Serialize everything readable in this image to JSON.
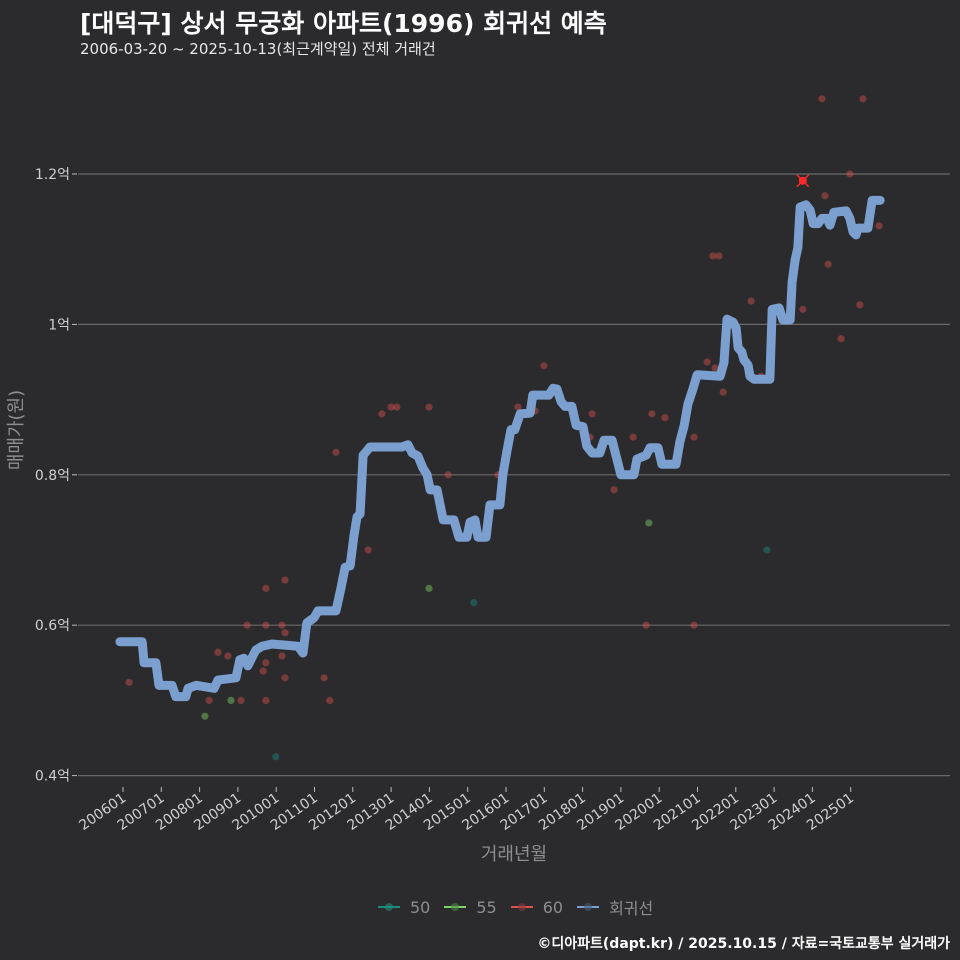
{
  "title": "[대덕구] 상서 무궁화 아파트(1996) 회귀선 예측",
  "subtitle": "2006-03-20 ~ 2025-10-13(최근계약일) 전체 거래건",
  "footer": "©디아파트(dapt.kr) / 2025.10.15 / 자료=국토교통부 실거래가",
  "colors": {
    "background": "#2b2a2c",
    "s50": "#1f8a80",
    "s55": "#7fd36a",
    "s60": "#d9534f",
    "regression": "#7b9fcf",
    "highlight": "#ff2a2a",
    "grid": "#6a6a6a"
  },
  "chart_data": {
    "type": "scatter",
    "title": "[대덕구] 상서 무궁화 아파트(1996) 회귀선 예측",
    "xlabel": "거래년월",
    "ylabel": "매매가(원)",
    "xlim": [
      2005.9,
      2025.9
    ],
    "ylim": [
      0.4,
      1.3
    ],
    "x_ticks": [
      2006,
      2007,
      2008,
      2009,
      2010,
      2011,
      2012,
      2013,
      2014,
      2015,
      2016,
      2017,
      2018,
      2019,
      2020,
      2021,
      2022,
      2023,
      2024,
      2025
    ],
    "x_tick_labels": [
      "200601",
      "200701",
      "200801",
      "200901",
      "201001",
      "201101",
      "201201",
      "201301",
      "201401",
      "201501",
      "201601",
      "201701",
      "201801",
      "201901",
      "202001",
      "202101",
      "202201",
      "202301",
      "202401",
      "202501"
    ],
    "y_ticks": [
      0.4,
      0.6,
      0.8,
      1.0,
      1.2
    ],
    "y_tick_labels": [
      "0.4억",
      "0.6억",
      "0.8억",
      "1억",
      "1.2억"
    ],
    "grid": true,
    "legend_position": "bottom",
    "legend": [
      "50",
      "55",
      "60",
      "회귀선"
    ],
    "series": [
      {
        "name": "50",
        "color_key": "s50",
        "points": [
          [
            2009.99,
            0.425
          ],
          [
            2015.16,
            0.63
          ],
          [
            2022.81,
            0.7
          ]
        ]
      },
      {
        "name": "55",
        "color_key": "s55",
        "points": [
          [
            2008.82,
            0.5
          ],
          [
            2008.14,
            0.479
          ],
          [
            2013.99,
            0.649
          ],
          [
            2019.73,
            0.736
          ]
        ]
      },
      {
        "name": "60",
        "color_key": "s60",
        "points": [
          [
            2006.16,
            0.524
          ],
          [
            2011.56,
            0.83
          ],
          [
            2012.4,
            0.7
          ],
          [
            2009.73,
            0.649
          ],
          [
            2010.23,
            0.66
          ],
          [
            2009.24,
            0.6
          ],
          [
            2009.73,
            0.6
          ],
          [
            2010.15,
            0.6
          ],
          [
            2010.23,
            0.59
          ],
          [
            2008.48,
            0.564
          ],
          [
            2008.74,
            0.559
          ],
          [
            2009.73,
            0.55
          ],
          [
            2009.66,
            0.539
          ],
          [
            2010.15,
            0.559
          ],
          [
            2010.23,
            0.53
          ],
          [
            2011.25,
            0.53
          ],
          [
            2008.25,
            0.5
          ],
          [
            2009.08,
            0.5
          ],
          [
            2009.73,
            0.5
          ],
          [
            2011.4,
            0.5
          ],
          [
            2012.76,
            0.881
          ],
          [
            2013.0,
            0.89
          ],
          [
            2013.15,
            0.89
          ],
          [
            2013.99,
            0.89
          ],
          [
            2014.49,
            0.8
          ],
          [
            2015.79,
            0.8
          ],
          [
            2016.99,
            0.945
          ],
          [
            2016.31,
            0.89
          ],
          [
            2016.76,
            0.885
          ],
          [
            2018.25,
            0.881
          ],
          [
            2018.19,
            0.85
          ],
          [
            2019.32,
            0.85
          ],
          [
            2018.82,
            0.78
          ],
          [
            2019.81,
            0.881
          ],
          [
            2020.15,
            0.876
          ],
          [
            2020.91,
            0.85
          ],
          [
            2019.66,
            0.6
          ],
          [
            2020.91,
            0.6
          ],
          [
            2024.25,
            1.3
          ],
          [
            2025.32,
            1.3
          ],
          [
            2024.98,
            1.2
          ],
          [
            2024.33,
            1.171
          ],
          [
            2025.74,
            1.131
          ],
          [
            2021.4,
            1.091
          ],
          [
            2021.56,
            1.091
          ],
          [
            2024.41,
            1.08
          ],
          [
            2022.4,
            1.031
          ],
          [
            2023.75,
            1.02
          ],
          [
            2025.24,
            1.026
          ],
          [
            2024.75,
            0.981
          ],
          [
            2021.25,
            0.95
          ],
          [
            2021.46,
            0.942
          ],
          [
            2022.66,
            0.931
          ],
          [
            2021.67,
            0.91
          ]
        ]
      },
      {
        "name": "회귀선",
        "color_key": "regression",
        "type": "line",
        "points": [
          [
            2005.92,
            0.578
          ],
          [
            2006.5,
            0.578
          ],
          [
            2006.55,
            0.55
          ],
          [
            2006.86,
            0.55
          ],
          [
            2006.94,
            0.52
          ],
          [
            2007.28,
            0.52
          ],
          [
            2007.38,
            0.505
          ],
          [
            2007.64,
            0.505
          ],
          [
            2007.7,
            0.516
          ],
          [
            2007.91,
            0.52
          ],
          [
            2008.38,
            0.516
          ],
          [
            2008.48,
            0.527
          ],
          [
            2008.95,
            0.53
          ],
          [
            2009.05,
            0.554
          ],
          [
            2009.16,
            0.556
          ],
          [
            2009.26,
            0.546
          ],
          [
            2009.47,
            0.567
          ],
          [
            2009.63,
            0.572
          ],
          [
            2009.89,
            0.575
          ],
          [
            2010.57,
            0.572
          ],
          [
            2010.7,
            0.563
          ],
          [
            2010.8,
            0.603
          ],
          [
            2010.99,
            0.61
          ],
          [
            2011.09,
            0.619
          ],
          [
            2011.56,
            0.619
          ],
          [
            2011.69,
            0.649
          ],
          [
            2011.8,
            0.677
          ],
          [
            2011.93,
            0.679
          ],
          [
            2012.03,
            0.719
          ],
          [
            2012.11,
            0.744
          ],
          [
            2012.19,
            0.748
          ],
          [
            2012.27,
            0.826
          ],
          [
            2012.45,
            0.837
          ],
          [
            2013.28,
            0.837
          ],
          [
            2013.44,
            0.84
          ],
          [
            2013.55,
            0.829
          ],
          [
            2013.7,
            0.825
          ],
          [
            2013.83,
            0.809
          ],
          [
            2013.94,
            0.8
          ],
          [
            2014.02,
            0.78
          ],
          [
            2014.2,
            0.78
          ],
          [
            2014.36,
            0.74
          ],
          [
            2014.64,
            0.74
          ],
          [
            2014.77,
            0.717
          ],
          [
            2014.98,
            0.717
          ],
          [
            2015.06,
            0.737
          ],
          [
            2015.19,
            0.74
          ],
          [
            2015.27,
            0.717
          ],
          [
            2015.48,
            0.717
          ],
          [
            2015.58,
            0.76
          ],
          [
            2015.84,
            0.76
          ],
          [
            2015.92,
            0.801
          ],
          [
            2016.03,
            0.833
          ],
          [
            2016.13,
            0.86
          ],
          [
            2016.23,
            0.86
          ],
          [
            2016.37,
            0.881
          ],
          [
            2016.63,
            0.882
          ],
          [
            2016.7,
            0.906
          ],
          [
            2017.12,
            0.906
          ],
          [
            2017.23,
            0.915
          ],
          [
            2017.33,
            0.914
          ],
          [
            2017.44,
            0.897
          ],
          [
            2017.54,
            0.891
          ],
          [
            2017.72,
            0.891
          ],
          [
            2017.83,
            0.866
          ],
          [
            2018.01,
            0.864
          ],
          [
            2018.11,
            0.838
          ],
          [
            2018.25,
            0.829
          ],
          [
            2018.45,
            0.829
          ],
          [
            2018.56,
            0.846
          ],
          [
            2018.77,
            0.846
          ],
          [
            2018.9,
            0.82
          ],
          [
            2019.0,
            0.8
          ],
          [
            2019.34,
            0.8
          ],
          [
            2019.42,
            0.821
          ],
          [
            2019.66,
            0.826
          ],
          [
            2019.76,
            0.836
          ],
          [
            2019.97,
            0.836
          ],
          [
            2020.07,
            0.814
          ],
          [
            2020.44,
            0.814
          ],
          [
            2020.54,
            0.844
          ],
          [
            2020.65,
            0.865
          ],
          [
            2020.75,
            0.894
          ],
          [
            2020.88,
            0.914
          ],
          [
            2020.99,
            0.933
          ],
          [
            2021.59,
            0.931
          ],
          [
            2021.69,
            0.949
          ],
          [
            2021.77,
            1.007
          ],
          [
            2021.93,
            1.003
          ],
          [
            2022.01,
            0.995
          ],
          [
            2022.06,
            0.969
          ],
          [
            2022.16,
            0.963
          ],
          [
            2022.21,
            0.953
          ],
          [
            2022.32,
            0.946
          ],
          [
            2022.37,
            0.931
          ],
          [
            2022.48,
            0.927
          ],
          [
            2022.89,
            0.927
          ],
          [
            2022.95,
            1.02
          ],
          [
            2023.13,
            1.022
          ],
          [
            2023.23,
            1.006
          ],
          [
            2023.42,
            1.006
          ],
          [
            2023.47,
            1.056
          ],
          [
            2023.55,
            1.086
          ],
          [
            2023.62,
            1.102
          ],
          [
            2023.68,
            1.156
          ],
          [
            2023.83,
            1.159
          ],
          [
            2023.94,
            1.152
          ],
          [
            2024.02,
            1.134
          ],
          [
            2024.15,
            1.134
          ],
          [
            2024.25,
            1.141
          ],
          [
            2024.38,
            1.141
          ],
          [
            2024.46,
            1.132
          ],
          [
            2024.56,
            1.149
          ],
          [
            2024.88,
            1.151
          ],
          [
            2024.98,
            1.141
          ],
          [
            2025.06,
            1.123
          ],
          [
            2025.14,
            1.119
          ],
          [
            2025.19,
            1.128
          ],
          [
            2025.45,
            1.128
          ],
          [
            2025.56,
            1.165
          ],
          [
            2025.77,
            1.165
          ]
        ]
      }
    ],
    "highlight_point": {
      "series": "60",
      "x": 2023.75,
      "y": 1.191
    }
  }
}
